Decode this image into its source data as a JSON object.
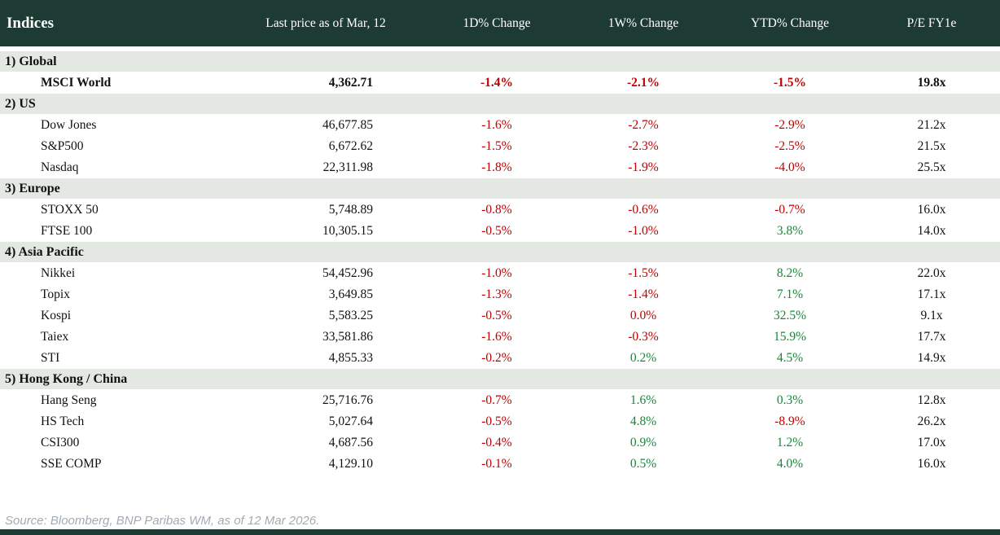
{
  "chart_data": {
    "type": "table",
    "title": "Indices",
    "columns": [
      "Last price as of Mar, 12",
      "1D% Change",
      "1W% Change",
      "YTD% Change",
      "P/E FY1e"
    ],
    "sections": [
      {
        "label": "1) Global",
        "rows": [
          {
            "name": "MSCI World",
            "price": "4,362.71",
            "changes": [
              {
                "value": "-1.4%",
                "tone": "neg"
              },
              {
                "value": "-2.1%",
                "tone": "neg"
              },
              {
                "value": "-1.5%",
                "tone": "neg"
              }
            ],
            "pe": "19.8x",
            "emphasis": true
          }
        ]
      },
      {
        "label": "2) US",
        "rows": [
          {
            "name": "Dow Jones",
            "price": "46,677.85",
            "changes": [
              {
                "value": "-1.6%",
                "tone": "neg"
              },
              {
                "value": "-2.7%",
                "tone": "neg"
              },
              {
                "value": "-2.9%",
                "tone": "neg"
              }
            ],
            "pe": "21.2x",
            "emphasis": false
          },
          {
            "name": "S&P500",
            "price": "6,672.62",
            "changes": [
              {
                "value": "-1.5%",
                "tone": "neg"
              },
              {
                "value": "-2.3%",
                "tone": "neg"
              },
              {
                "value": "-2.5%",
                "tone": "neg"
              }
            ],
            "pe": "21.5x",
            "emphasis": false
          },
          {
            "name": "Nasdaq",
            "price": "22,311.98",
            "changes": [
              {
                "value": "-1.8%",
                "tone": "neg"
              },
              {
                "value": "-1.9%",
                "tone": "neg"
              },
              {
                "value": "-4.0%",
                "tone": "neg"
              }
            ],
            "pe": "25.5x",
            "emphasis": false
          }
        ]
      },
      {
        "label": "3) Europe",
        "rows": [
          {
            "name": "STOXX 50",
            "price": "5,748.89",
            "changes": [
              {
                "value": "-0.8%",
                "tone": "neg"
              },
              {
                "value": "-0.6%",
                "tone": "neg"
              },
              {
                "value": "-0.7%",
                "tone": "neg"
              }
            ],
            "pe": "16.0x",
            "emphasis": false
          },
          {
            "name": "FTSE 100",
            "price": "10,305.15",
            "changes": [
              {
                "value": "-0.5%",
                "tone": "neg"
              },
              {
                "value": "-1.0%",
                "tone": "neg"
              },
              {
                "value": "3.8%",
                "tone": "pos"
              }
            ],
            "pe": "14.0x",
            "emphasis": false
          }
        ]
      },
      {
        "label": "4) Asia Pacific",
        "rows": [
          {
            "name": "Nikkei",
            "price": "54,452.96",
            "changes": [
              {
                "value": "-1.0%",
                "tone": "neg"
              },
              {
                "value": "-1.5%",
                "tone": "neg"
              },
              {
                "value": "8.2%",
                "tone": "pos"
              }
            ],
            "pe": "22.0x",
            "emphasis": false
          },
          {
            "name": "Topix",
            "price": "3,649.85",
            "changes": [
              {
                "value": "-1.3%",
                "tone": "neg"
              },
              {
                "value": "-1.4%",
                "tone": "neg"
              },
              {
                "value": "7.1%",
                "tone": "pos"
              }
            ],
            "pe": "17.1x",
            "emphasis": false
          },
          {
            "name": "Kospi",
            "price": "5,583.25",
            "changes": [
              {
                "value": "-0.5%",
                "tone": "neg"
              },
              {
                "value": "0.0%",
                "tone": "neg"
              },
              {
                "value": "32.5%",
                "tone": "pos"
              }
            ],
            "pe": "9.1x",
            "emphasis": false
          },
          {
            "name": "Taiex",
            "price": "33,581.86",
            "changes": [
              {
                "value": "-1.6%",
                "tone": "neg"
              },
              {
                "value": "-0.3%",
                "tone": "neg"
              },
              {
                "value": "15.9%",
                "tone": "pos"
              }
            ],
            "pe": "17.7x",
            "emphasis": false
          },
          {
            "name": "STI",
            "price": "4,855.33",
            "changes": [
              {
                "value": "-0.2%",
                "tone": "neg"
              },
              {
                "value": "0.2%",
                "tone": "pos"
              },
              {
                "value": "4.5%",
                "tone": "pos"
              }
            ],
            "pe": "14.9x",
            "emphasis": false
          }
        ]
      },
      {
        "label": "5) Hong Kong / China",
        "rows": [
          {
            "name": "Hang Seng",
            "price": "25,716.76",
            "changes": [
              {
                "value": "-0.7%",
                "tone": "neg"
              },
              {
                "value": "1.6%",
                "tone": "pos"
              },
              {
                "value": "0.3%",
                "tone": "pos"
              }
            ],
            "pe": "12.8x",
            "emphasis": false
          },
          {
            "name": "HS Tech",
            "price": "5,027.64",
            "changes": [
              {
                "value": "-0.5%",
                "tone": "neg"
              },
              {
                "value": "4.8%",
                "tone": "pos"
              },
              {
                "value": "-8.9%",
                "tone": "neg"
              }
            ],
            "pe": "26.2x",
            "emphasis": false
          },
          {
            "name": "CSI300",
            "price": "4,687.56",
            "changes": [
              {
                "value": "-0.4%",
                "tone": "neg"
              },
              {
                "value": "0.9%",
                "tone": "pos"
              },
              {
                "value": "1.2%",
                "tone": "pos"
              }
            ],
            "pe": "17.0x",
            "emphasis": false
          },
          {
            "name": "SSE COMP",
            "price": "4,129.10",
            "changes": [
              {
                "value": "-0.1%",
                "tone": "neg"
              },
              {
                "value": "0.5%",
                "tone": "pos"
              },
              {
                "value": "4.0%",
                "tone": "pos"
              }
            ],
            "pe": "16.0x",
            "emphasis": false
          }
        ]
      }
    ]
  },
  "footer": {
    "source": "Source: Bloomberg, BNP Paribas WM, as of 12 Mar 2026."
  },
  "colors": {
    "header_bg": "#1e3b33",
    "section_bg": "#e4e8e3",
    "negative": "#c00000",
    "positive": "#128a36",
    "source_text": "#a4abb3"
  }
}
